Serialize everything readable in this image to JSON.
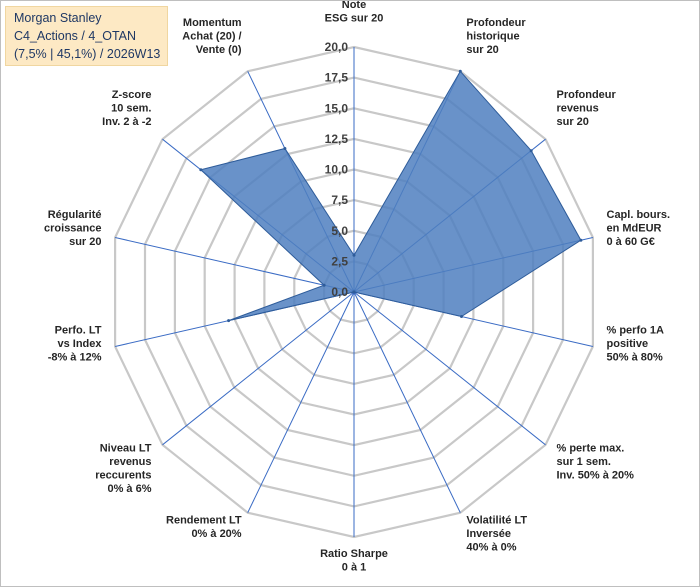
{
  "header": {
    "line1": "Morgan Stanley",
    "line2": "C4_Actions / 4_OTAN",
    "line3": "(7,5% | 45,1%) / 2026W13"
  },
  "colors": {
    "fill": "#4f7fbf",
    "stroke": "#2e5c9a",
    "grid": "#c8c8c8",
    "spoke": "#3a6bc4",
    "label_box": "#fde9c4"
  },
  "chart_data": {
    "type": "radar",
    "rmax": 20,
    "ticks": [
      "0,0",
      "2,5",
      "5,0",
      "7,5",
      "10,0",
      "12,5",
      "15,0",
      "17,5",
      "20,0"
    ],
    "axes": [
      {
        "label": [
          "Note",
          "ESG sur 20"
        ],
        "value": 3.0
      },
      {
        "label": [
          "Profondeur",
          "historique",
          "sur 20"
        ],
        "value": 20.0
      },
      {
        "label": [
          "Profondeur",
          "revenus",
          "sur 20"
        ],
        "value": 18.5
      },
      {
        "label": [
          "Capl. bours.",
          "en MdEUR",
          "0 à 60 G€"
        ],
        "value": 19.0
      },
      {
        "label": [
          "% perfo 1A",
          "positive",
          "50% à 80%"
        ],
        "value": 9.0
      },
      {
        "label": [
          "% perte max.",
          "sur 1 sem.",
          "Inv. 50% à 20%"
        ],
        "value": 0.0
      },
      {
        "label": [
          "Volatilité LT",
          "Inversée",
          "40% à 0%"
        ],
        "value": 0.0
      },
      {
        "label": [
          "Ratio Sharpe",
          "0 à 1"
        ],
        "value": 0.0
      },
      {
        "label": [
          "Rendement LT",
          "0% à 20%"
        ],
        "value": 0.0
      },
      {
        "label": [
          "Niveau LT",
          "revenus",
          "reccurents",
          "0% à 6%"
        ],
        "value": 0.0
      },
      {
        "label": [
          "Perfo. LT",
          "vs Index",
          "-8% à 12%"
        ],
        "value": 10.5
      },
      {
        "label": [
          "Régularité",
          "croissance",
          "sur 20"
        ],
        "value": 2.5
      },
      {
        "label": [
          "Z-score",
          "10 sem.",
          "Inv. 2 à -2"
        ],
        "value": 16.0
      },
      {
        "label": [
          "Momentum",
          "Achat (20) /",
          "Vente (0)"
        ],
        "value": 13.0
      }
    ]
  }
}
